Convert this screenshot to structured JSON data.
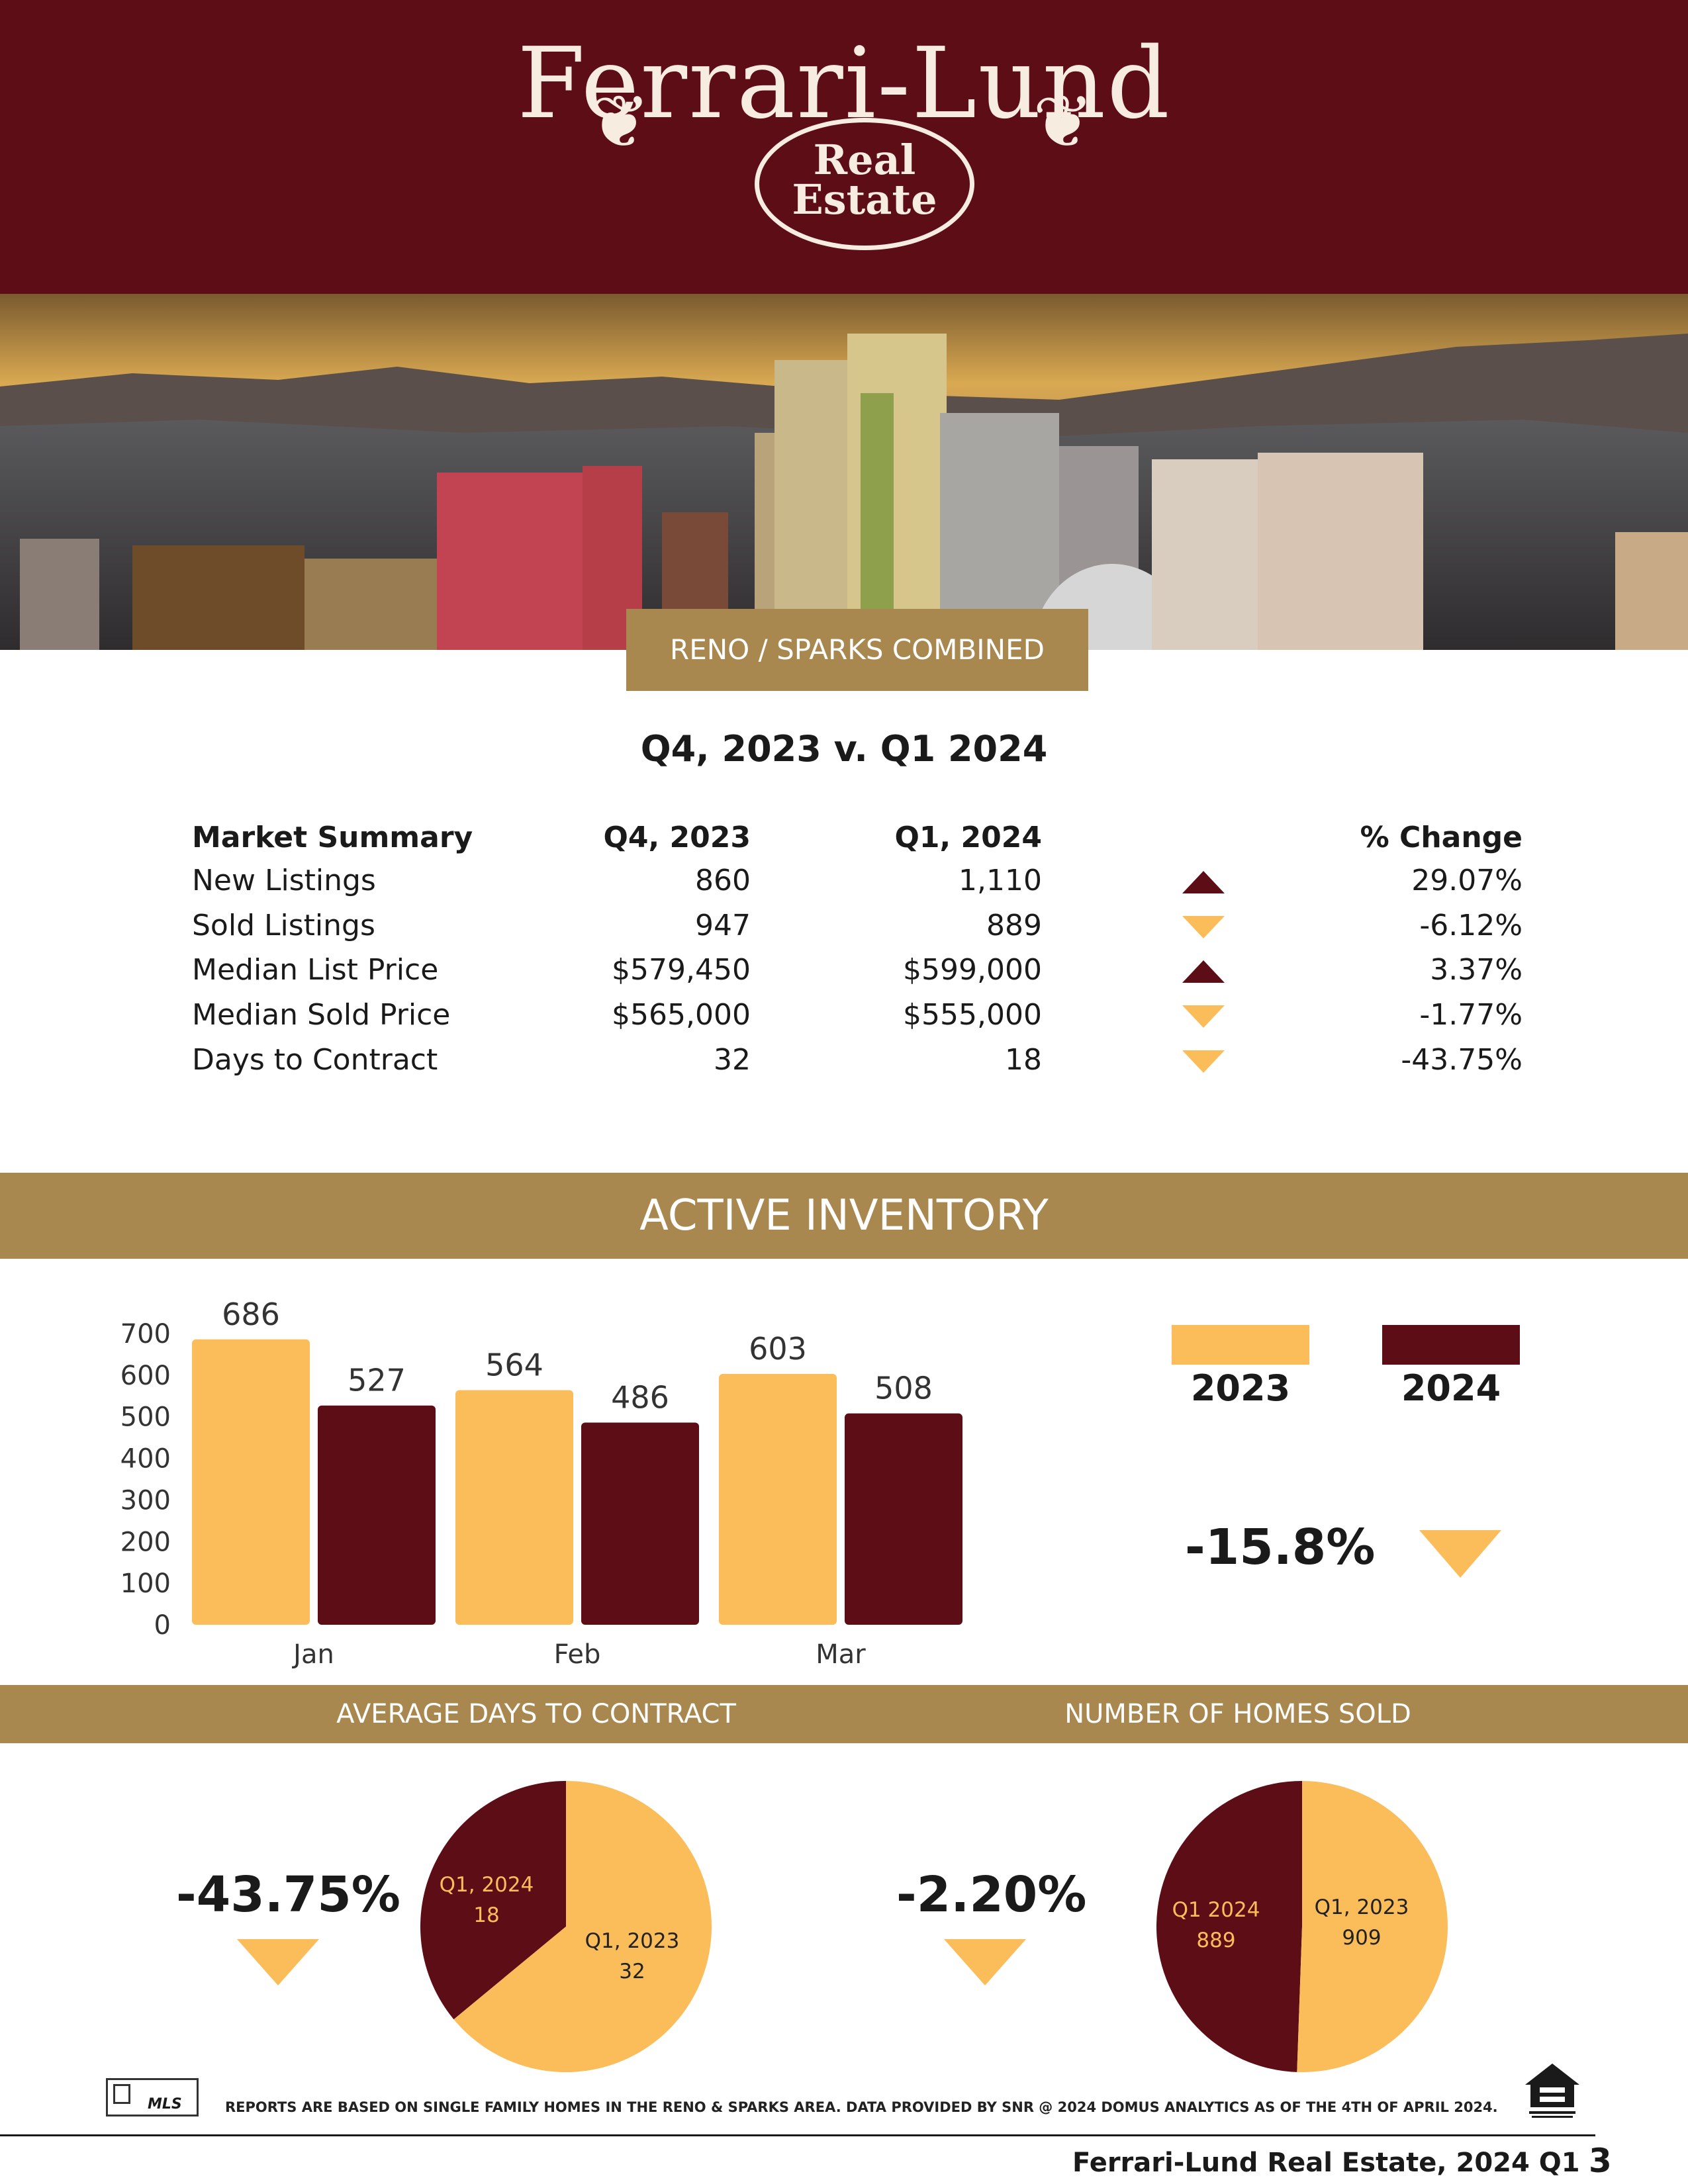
{
  "brand": {
    "name": "Ferrari-Lund",
    "sub_line1": "Real",
    "sub_line2": "Estate"
  },
  "region_tab": "RENO / SPARKS COMBINED",
  "comparison_title": "Q4, 2023 v. Q1 2024",
  "market_summary": {
    "headers": [
      "Market Summary",
      "Q4, 2023",
      "Q1, 2024",
      "% Change"
    ],
    "rows": [
      {
        "label": "New Listings",
        "q4_2023": "860",
        "q1_2024": "1,110",
        "direction": "up",
        "change": "29.07%"
      },
      {
        "label": "Sold Listings",
        "q4_2023": "947",
        "q1_2024": "889",
        "direction": "down",
        "change": "-6.12%"
      },
      {
        "label": "Median List Price",
        "q4_2023": "$579,450",
        "q1_2024": "$599,000",
        "direction": "up",
        "change": "3.37%"
      },
      {
        "label": "Median Sold Price",
        "q4_2023": "$565,000",
        "q1_2024": "$555,000",
        "direction": "down",
        "change": "-1.77%"
      },
      {
        "label": "Days to Contract",
        "q4_2023": "32",
        "q1_2024": "18",
        "direction": "down",
        "change": "-43.75%"
      }
    ]
  },
  "active_inventory": {
    "band_label": "ACTIVE INVENTORY",
    "legend": [
      "2023",
      "2024"
    ],
    "change": "-15.8%",
    "direction": "down"
  },
  "colors": {
    "maroon": "#5c0d16",
    "gold": "#fbbd5a",
    "band": "#a9884f"
  },
  "chart_data": [
    {
      "type": "bar",
      "categories": [
        "Jan",
        "Feb",
        "Mar"
      ],
      "series": [
        {
          "name": "2023",
          "values": [
            686,
            564,
            603
          ],
          "color": "#fbbd5a"
        },
        {
          "name": "2024",
          "values": [
            527,
            486,
            508
          ],
          "color": "#5c0d16"
        }
      ],
      "yticks": [
        0,
        100,
        200,
        300,
        400,
        500,
        600,
        700
      ],
      "ylim": [
        0,
        700
      ],
      "legend": "right",
      "grid": false
    },
    {
      "type": "pie",
      "labels": [
        "Q1, 2024",
        "Q1, 2023"
      ],
      "values": [
        18,
        32
      ],
      "colors": [
        "#5c0d16",
        "#fbbd5a"
      ]
    },
    {
      "type": "pie",
      "labels": [
        "Q1 2024",
        "Q1, 2023"
      ],
      "values": [
        889,
        909
      ],
      "colors": [
        "#5c0d16",
        "#fbbd5a"
      ]
    }
  ],
  "days_to_contract": {
    "band_label": "AVERAGE DAYS TO CONTRACT",
    "change": "-43.75%",
    "slice_a_label": "Q1, 2024",
    "slice_a_value": "18",
    "slice_b_label": "Q1, 2023",
    "slice_b_value": "32"
  },
  "homes_sold": {
    "band_label": "NUMBER OF HOMES SOLD",
    "change": "-2.20%",
    "slice_a_label": "Q1 2024",
    "slice_a_value": "889",
    "slice_b_label": "Q1, 2023",
    "slice_b_value": "909"
  },
  "footer": {
    "mls_logo": "MLS",
    "disclaimer": "REPORTS ARE BASED ON SINGLE FAMILY HOMES IN THE RENO & SPARKS AREA. DATA PROVIDED BY SNR @ 2024 DOMUS ANALYTICS AS OF THE 4TH OF APRIL 2024.",
    "footer_text": "Ferrari-Lund Real Estate, 2024 Q1",
    "page_number": "3",
    "eho_icon": "equal-housing-opportunity-icon"
  }
}
